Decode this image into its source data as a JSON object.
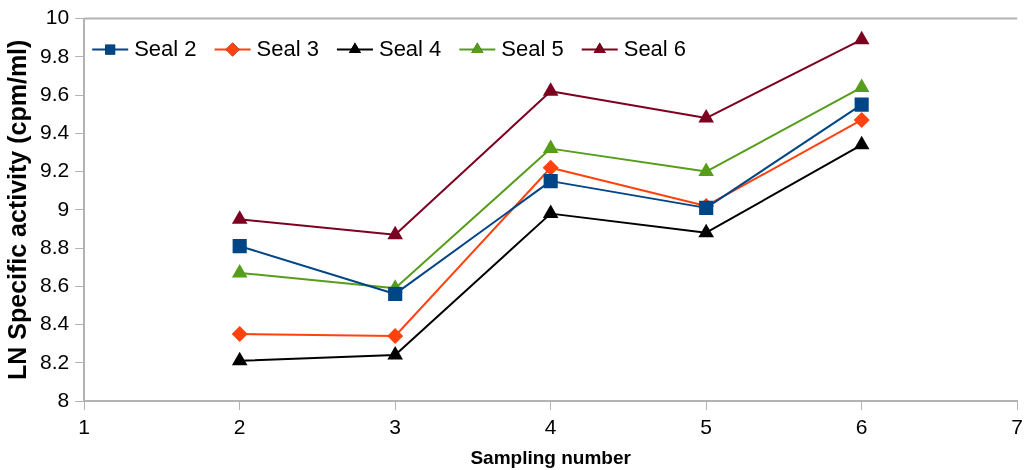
{
  "chart_data": {
    "type": "line",
    "xlabel": "Sampling number",
    "ylabel": "LN Specific activity (cpm/ml)",
    "x": [
      2,
      3,
      4,
      5,
      6
    ],
    "xlim": [
      1,
      7
    ],
    "xticks": [
      1,
      2,
      3,
      4,
      5,
      6,
      7
    ],
    "ylim": [
      8,
      10
    ],
    "yticks": [
      8,
      8.2,
      8.4,
      8.6,
      8.8,
      9,
      9.2,
      9.4,
      9.6,
      9.8,
      10
    ],
    "grid": false,
    "legend": "top left",
    "series": [
      {
        "name": "Seal 2",
        "color": "#004586",
        "marker": "square",
        "values": [
          8.81,
          8.56,
          9.15,
          9.01,
          9.55
        ]
      },
      {
        "name": "Seal 3",
        "color": "#ff420e",
        "marker": "diamond",
        "values": [
          8.35,
          8.34,
          9.22,
          9.02,
          9.47
        ]
      },
      {
        "name": "Seal 4",
        "color": "#000000",
        "marker": "triangle",
        "values": [
          8.21,
          8.24,
          8.98,
          8.88,
          9.34
        ]
      },
      {
        "name": "Seal 5",
        "color": "#579d1c",
        "marker": "triangle",
        "values": [
          8.67,
          8.59,
          9.32,
          9.2,
          9.64
        ]
      },
      {
        "name": "Seal 6",
        "color": "#7e0021",
        "marker": "triangle",
        "values": [
          8.95,
          8.87,
          9.62,
          9.48,
          9.89
        ]
      }
    ]
  }
}
